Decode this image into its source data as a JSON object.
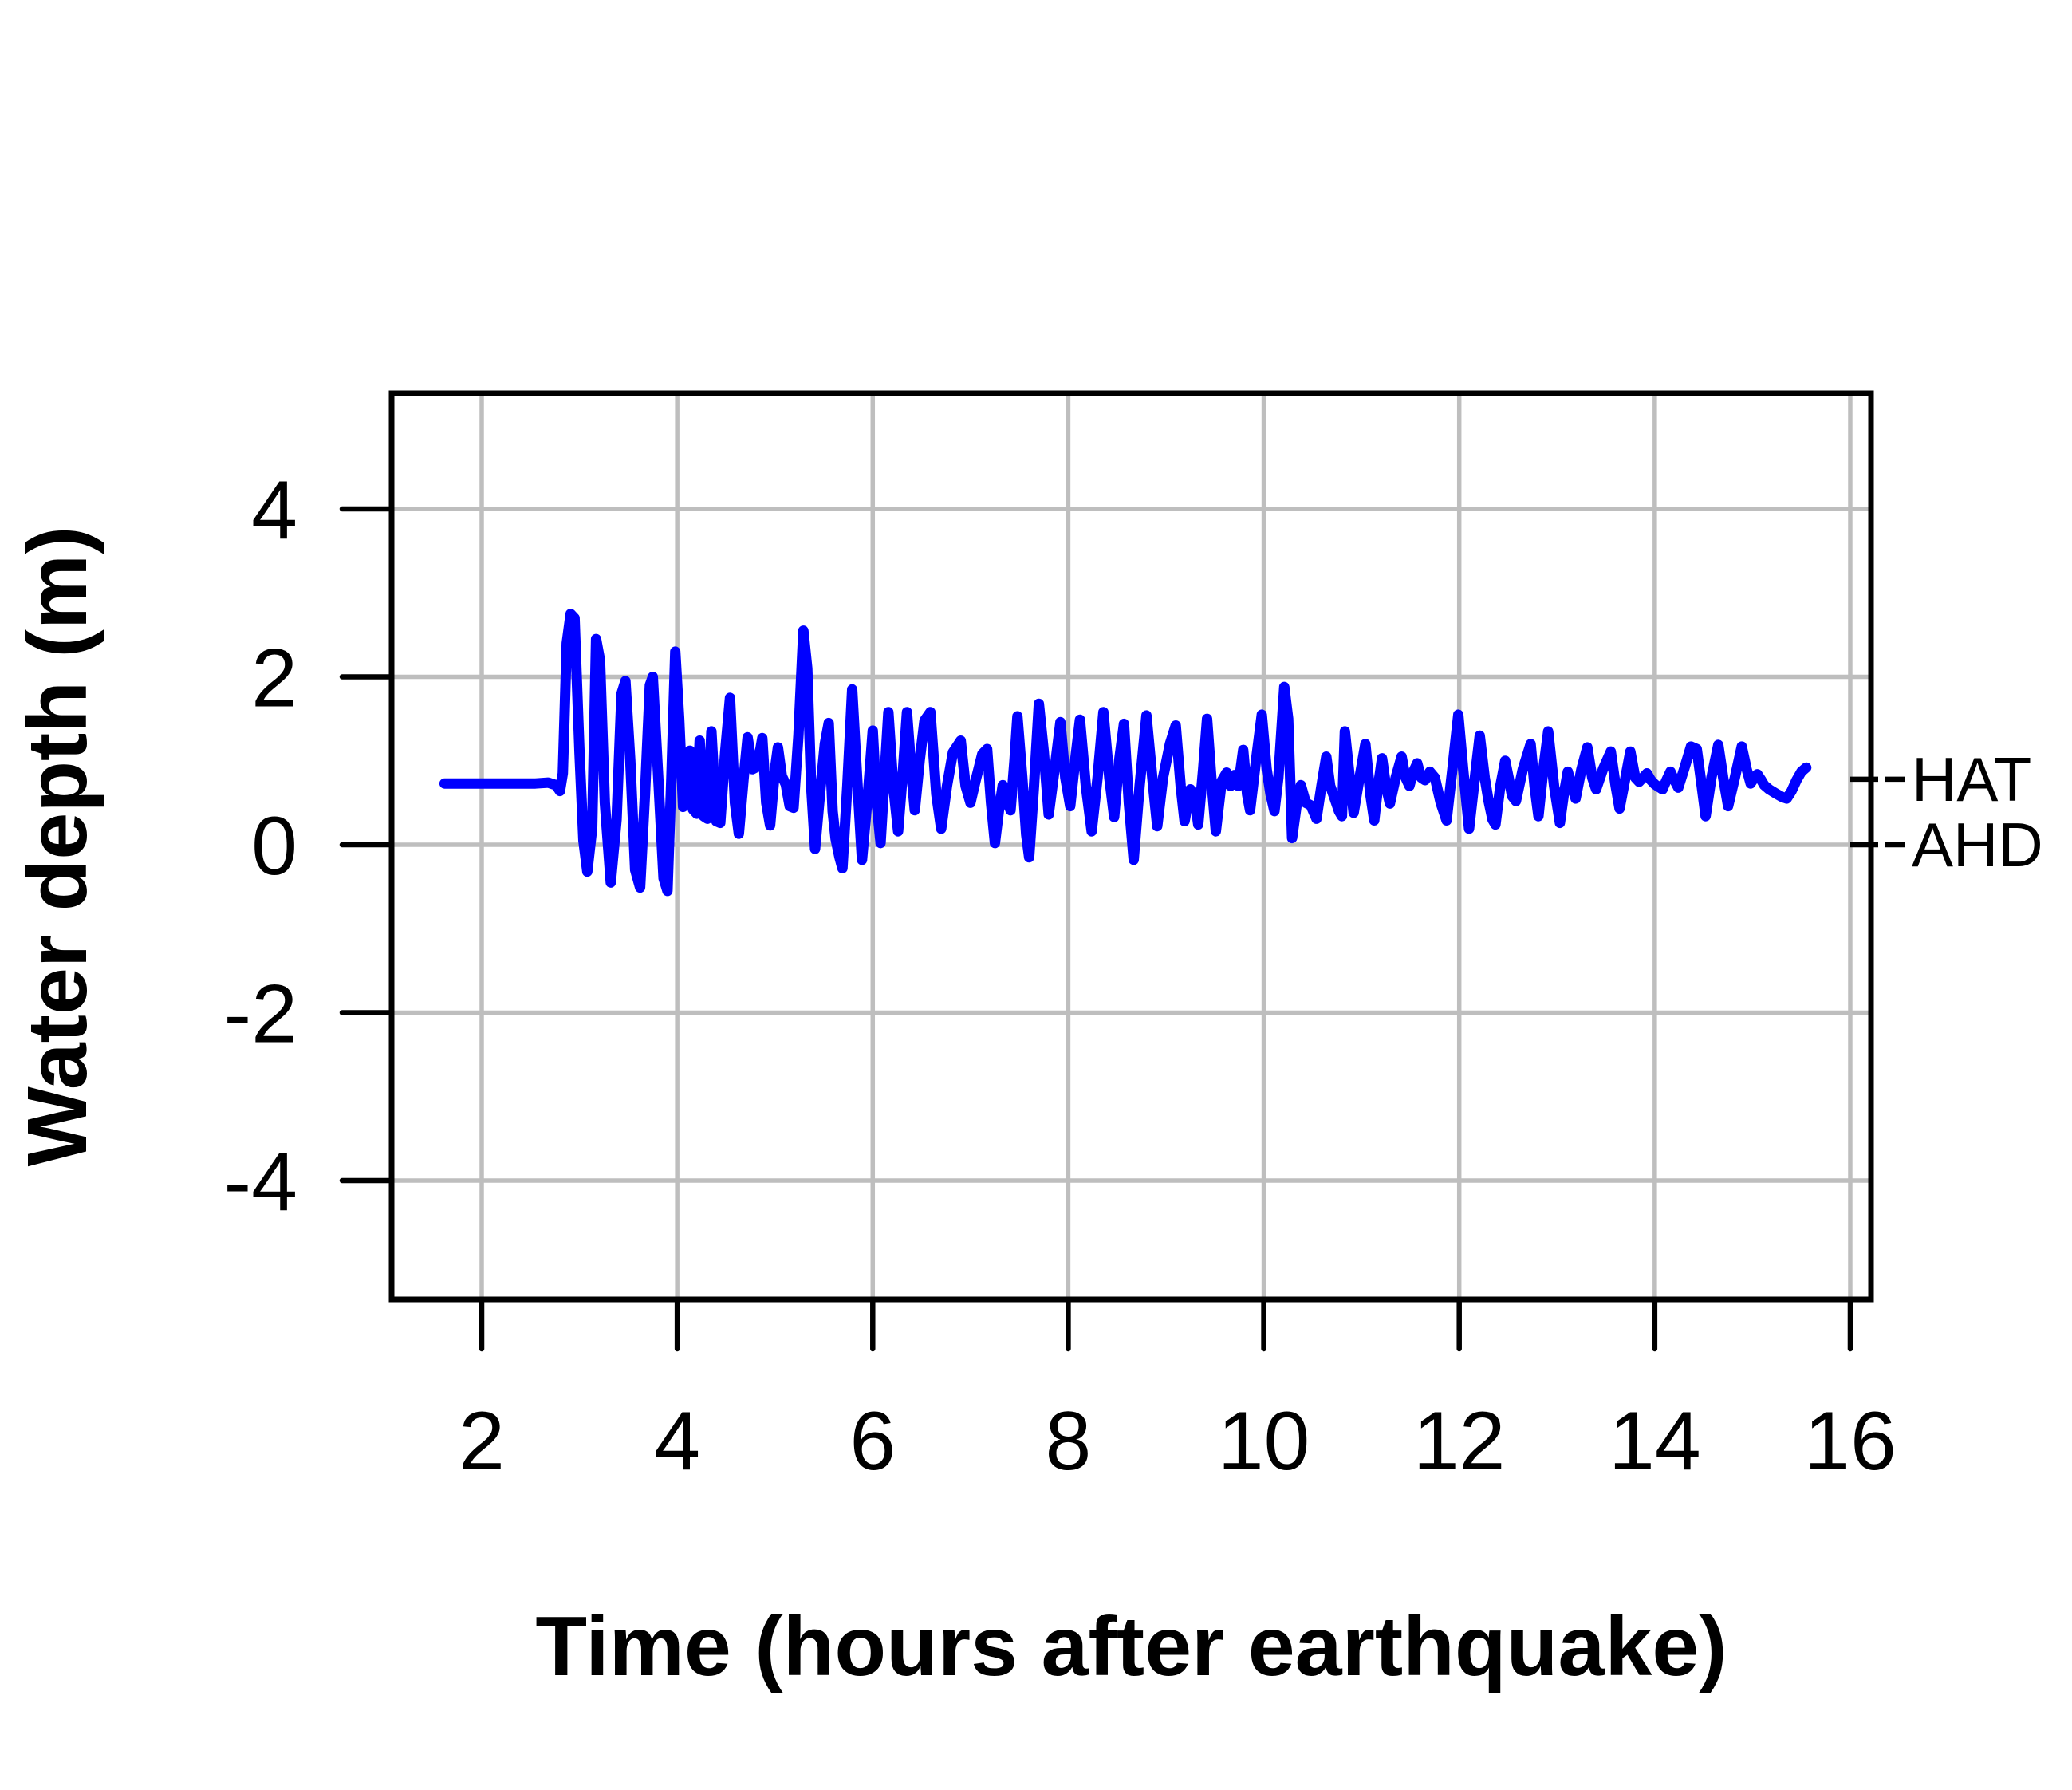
{
  "figure": {
    "background_color": "#FFFFFF",
    "border_color": "#000000",
    "kind": "tide-gauge water level record"
  },
  "chart_data": {
    "type": "line",
    "title": "",
    "xlabel": "Time (hours after earthquake)",
    "ylabel": "Water depth (m)",
    "xlim": [
      1.08,
      16.21
    ],
    "ylim": [
      -5.4,
      5.4
    ],
    "grid": true,
    "grid_color": "#BEBEBE",
    "axis_color": "#000000",
    "legend": "none",
    "xticks": {
      "values": [
        2,
        4,
        6,
        8,
        10,
        12,
        14,
        16
      ],
      "labels": [
        "2",
        "4",
        "6",
        "8",
        "10",
        "12",
        "14",
        "16"
      ]
    },
    "yticks": {
      "values": [
        -4,
        -2,
        0,
        2,
        4
      ],
      "labels": [
        "-4",
        "-2",
        "0",
        "2",
        "4"
      ]
    },
    "annotations": [
      {
        "label": "HAT",
        "value_m": 0.78,
        "dash": "--"
      },
      {
        "label": "AHD",
        "value_m": 0.0,
        "dash": "--"
      }
    ],
    "series": [
      {
        "name": "water-depth",
        "color": "#0000FF",
        "points": [
          [
            1.62,
            0.73
          ],
          [
            1.85,
            0.73
          ],
          [
            2.1,
            0.73
          ],
          [
            2.35,
            0.73
          ],
          [
            2.55,
            0.73
          ],
          [
            2.68,
            0.74
          ],
          [
            2.76,
            0.71
          ],
          [
            2.8,
            0.64
          ],
          [
            2.83,
            0.85
          ],
          [
            2.87,
            2.4
          ],
          [
            2.91,
            2.75
          ],
          [
            2.95,
            2.7
          ],
          [
            3.0,
            1.1
          ],
          [
            3.04,
            0.05
          ],
          [
            3.08,
            -0.32
          ],
          [
            3.13,
            0.2
          ],
          [
            3.17,
            2.45
          ],
          [
            3.21,
            2.2
          ],
          [
            3.26,
            0.5
          ],
          [
            3.32,
            -0.45
          ],
          [
            3.38,
            0.3
          ],
          [
            3.43,
            1.8
          ],
          [
            3.47,
            1.95
          ],
          [
            3.52,
            1.0
          ],
          [
            3.57,
            -0.3
          ],
          [
            3.62,
            -0.51
          ],
          [
            3.67,
            0.6
          ],
          [
            3.72,
            1.9
          ],
          [
            3.75,
            2.0
          ],
          [
            3.81,
            0.7
          ],
          [
            3.86,
            -0.4
          ],
          [
            3.9,
            -0.55
          ],
          [
            3.94,
            0.8
          ],
          [
            3.98,
            2.3
          ],
          [
            4.02,
            1.5
          ],
          [
            4.06,
            0.45
          ],
          [
            4.1,
            0.95
          ],
          [
            4.13,
            1.12
          ],
          [
            4.16,
            0.42
          ],
          [
            4.2,
            0.37
          ],
          [
            4.23,
            1.24
          ],
          [
            4.27,
            0.34
          ],
          [
            4.31,
            0.31
          ],
          [
            4.35,
            1.35
          ],
          [
            4.4,
            0.28
          ],
          [
            4.44,
            0.26
          ],
          [
            4.49,
            1.1
          ],
          [
            4.54,
            1.75
          ],
          [
            4.59,
            0.5
          ],
          [
            4.63,
            0.13
          ],
          [
            4.68,
            0.8
          ],
          [
            4.72,
            1.28
          ],
          [
            4.77,
            0.9
          ],
          [
            4.82,
            0.93
          ],
          [
            4.87,
            1.27
          ],
          [
            4.91,
            0.5
          ],
          [
            4.95,
            0.23
          ],
          [
            5.0,
            0.9
          ],
          [
            5.03,
            1.16
          ],
          [
            5.07,
            0.82
          ],
          [
            5.11,
            0.72
          ],
          [
            5.15,
            0.46
          ],
          [
            5.19,
            0.44
          ],
          [
            5.24,
            1.3
          ],
          [
            5.29,
            2.55
          ],
          [
            5.33,
            2.1
          ],
          [
            5.37,
            0.7
          ],
          [
            5.41,
            -0.05
          ],
          [
            5.46,
            0.6
          ],
          [
            5.51,
            1.2
          ],
          [
            5.55,
            1.45
          ],
          [
            5.59,
            0.4
          ],
          [
            5.62,
            0.07
          ],
          [
            5.66,
            -0.15
          ],
          [
            5.69,
            -0.28
          ],
          [
            5.74,
            0.7
          ],
          [
            5.79,
            1.85
          ],
          [
            5.84,
            0.8
          ],
          [
            5.89,
            -0.18
          ],
          [
            5.95,
            0.6
          ],
          [
            6.0,
            1.36
          ],
          [
            6.04,
            0.5
          ],
          [
            6.08,
            0.02
          ],
          [
            6.12,
            0.8
          ],
          [
            6.16,
            1.58
          ],
          [
            6.21,
            0.7
          ],
          [
            6.26,
            0.16
          ],
          [
            6.31,
            0.9
          ],
          [
            6.35,
            1.58
          ],
          [
            6.4,
            0.8
          ],
          [
            6.43,
            0.41
          ],
          [
            6.48,
            1.0
          ],
          [
            6.53,
            1.48
          ],
          [
            6.59,
            1.58
          ],
          [
            6.65,
            0.6
          ],
          [
            6.7,
            0.19
          ],
          [
            6.76,
            0.7
          ],
          [
            6.82,
            1.1
          ],
          [
            6.9,
            1.24
          ],
          [
            6.95,
            0.7
          ],
          [
            7.0,
            0.5
          ],
          [
            7.06,
            0.8
          ],
          [
            7.12,
            1.08
          ],
          [
            7.17,
            1.14
          ],
          [
            7.21,
            0.5
          ],
          [
            7.25,
            0.02
          ],
          [
            7.29,
            0.4
          ],
          [
            7.33,
            0.71
          ],
          [
            7.37,
            0.52
          ],
          [
            7.41,
            0.41
          ],
          [
            7.45,
            1.0
          ],
          [
            7.48,
            1.53
          ],
          [
            7.53,
            0.8
          ],
          [
            7.57,
            0.12
          ],
          [
            7.6,
            -0.15
          ],
          [
            7.65,
            0.7
          ],
          [
            7.7,
            1.68
          ],
          [
            7.75,
            1.1
          ],
          [
            7.8,
            0.36
          ],
          [
            7.86,
            0.9
          ],
          [
            7.92,
            1.46
          ],
          [
            7.97,
            0.8
          ],
          [
            8.02,
            0.46
          ],
          [
            8.07,
            1.0
          ],
          [
            8.12,
            1.49
          ],
          [
            8.18,
            0.7
          ],
          [
            8.24,
            0.16
          ],
          [
            8.3,
            0.8
          ],
          [
            8.36,
            1.58
          ],
          [
            8.42,
            0.8
          ],
          [
            8.47,
            0.33
          ],
          [
            8.52,
            1.0
          ],
          [
            8.57,
            1.44
          ],
          [
            8.62,
            0.5
          ],
          [
            8.67,
            -0.18
          ],
          [
            8.73,
            0.7
          ],
          [
            8.8,
            1.54
          ],
          [
            8.86,
            0.8
          ],
          [
            8.91,
            0.22
          ],
          [
            8.97,
            0.8
          ],
          [
            9.04,
            1.2
          ],
          [
            9.1,
            1.42
          ],
          [
            9.15,
            0.7
          ],
          [
            9.19,
            0.28
          ],
          [
            9.25,
            0.66
          ],
          [
            9.3,
            0.5
          ],
          [
            9.33,
            0.24
          ],
          [
            9.38,
            0.9
          ],
          [
            9.42,
            1.5
          ],
          [
            9.47,
            0.7
          ],
          [
            9.51,
            0.16
          ],
          [
            9.57,
            0.76
          ],
          [
            9.62,
            0.86
          ],
          [
            9.66,
            0.7
          ],
          [
            9.7,
            0.83
          ],
          [
            9.74,
            0.7
          ],
          [
            9.79,
            1.13
          ],
          [
            9.83,
            0.6
          ],
          [
            9.86,
            0.41
          ],
          [
            9.92,
            1.0
          ],
          [
            9.98,
            1.55
          ],
          [
            10.03,
            0.9
          ],
          [
            10.07,
            0.6
          ],
          [
            10.11,
            0.4
          ],
          [
            10.15,
            0.8
          ],
          [
            10.21,
            1.88
          ],
          [
            10.25,
            1.5
          ],
          [
            10.29,
            0.08
          ],
          [
            10.34,
            0.5
          ],
          [
            10.38,
            0.71
          ],
          [
            10.43,
            0.5
          ],
          [
            10.48,
            0.47
          ],
          [
            10.54,
            0.31
          ],
          [
            10.59,
            0.7
          ],
          [
            10.64,
            1.05
          ],
          [
            10.68,
            0.7
          ],
          [
            10.72,
            0.57
          ],
          [
            10.77,
            0.4
          ],
          [
            10.8,
            0.34
          ],
          [
            10.83,
            1.35
          ],
          [
            10.88,
            0.8
          ],
          [
            10.92,
            0.38
          ],
          [
            10.98,
            0.8
          ],
          [
            11.04,
            1.2
          ],
          [
            11.09,
            0.6
          ],
          [
            11.13,
            0.29
          ],
          [
            11.17,
            0.7
          ],
          [
            11.21,
            1.03
          ],
          [
            11.25,
            0.7
          ],
          [
            11.29,
            0.49
          ],
          [
            11.35,
            0.8
          ],
          [
            11.41,
            1.05
          ],
          [
            11.45,
            0.8
          ],
          [
            11.49,
            0.7
          ],
          [
            11.53,
            0.87
          ],
          [
            11.57,
            0.97
          ],
          [
            11.61,
            0.8
          ],
          [
            11.65,
            0.77
          ],
          [
            11.7,
            0.87
          ],
          [
            11.75,
            0.8
          ],
          [
            11.81,
            0.5
          ],
          [
            11.87,
            0.29
          ],
          [
            11.93,
            0.9
          ],
          [
            11.99,
            1.55
          ],
          [
            12.04,
            0.9
          ],
          [
            12.1,
            0.19
          ],
          [
            12.16,
            0.8
          ],
          [
            12.21,
            1.3
          ],
          [
            12.26,
            0.8
          ],
          [
            12.3,
            0.52
          ],
          [
            12.34,
            0.3
          ],
          [
            12.37,
            0.24
          ],
          [
            12.42,
            0.7
          ],
          [
            12.47,
            1.0
          ],
          [
            12.51,
            0.77
          ],
          [
            12.54,
            0.58
          ],
          [
            12.58,
            0.52
          ],
          [
            12.65,
            0.9
          ],
          [
            12.73,
            1.2
          ],
          [
            12.77,
            0.7
          ],
          [
            12.81,
            0.34
          ],
          [
            12.86,
            0.9
          ],
          [
            12.91,
            1.35
          ],
          [
            12.97,
            0.7
          ],
          [
            13.03,
            0.26
          ],
          [
            13.07,
            0.6
          ],
          [
            13.11,
            0.87
          ],
          [
            13.15,
            0.7
          ],
          [
            13.19,
            0.55
          ],
          [
            13.25,
            0.9
          ],
          [
            13.31,
            1.16
          ],
          [
            13.36,
            0.8
          ],
          [
            13.4,
            0.66
          ],
          [
            13.47,
            0.9
          ],
          [
            13.55,
            1.11
          ],
          [
            13.6,
            0.7
          ],
          [
            13.64,
            0.43
          ],
          [
            13.7,
            0.8
          ],
          [
            13.75,
            1.11
          ],
          [
            13.8,
            0.8
          ],
          [
            13.84,
            0.75
          ],
          [
            13.88,
            0.8
          ],
          [
            13.92,
            0.85
          ],
          [
            13.96,
            0.77
          ],
          [
            14.0,
            0.72
          ],
          [
            14.04,
            0.69
          ],
          [
            14.08,
            0.66
          ],
          [
            14.12,
            0.77
          ],
          [
            14.16,
            0.87
          ],
          [
            14.2,
            0.77
          ],
          [
            14.24,
            0.68
          ],
          [
            14.3,
            0.9
          ],
          [
            14.37,
            1.17
          ],
          [
            14.43,
            1.14
          ],
          [
            14.48,
            0.7
          ],
          [
            14.52,
            0.34
          ],
          [
            14.58,
            0.8
          ],
          [
            14.65,
            1.19
          ],
          [
            14.7,
            0.8
          ],
          [
            14.75,
            0.46
          ],
          [
            14.82,
            0.8
          ],
          [
            14.89,
            1.17
          ],
          [
            14.94,
            0.9
          ],
          [
            14.98,
            0.73
          ],
          [
            15.02,
            0.8
          ],
          [
            15.05,
            0.84
          ],
          [
            15.09,
            0.77
          ],
          [
            15.12,
            0.71
          ],
          [
            15.17,
            0.66
          ],
          [
            15.24,
            0.61
          ],
          [
            15.3,
            0.57
          ],
          [
            15.35,
            0.55
          ],
          [
            15.4,
            0.64
          ],
          [
            15.45,
            0.77
          ],
          [
            15.5,
            0.87
          ],
          [
            15.55,
            0.92
          ]
        ]
      }
    ]
  }
}
